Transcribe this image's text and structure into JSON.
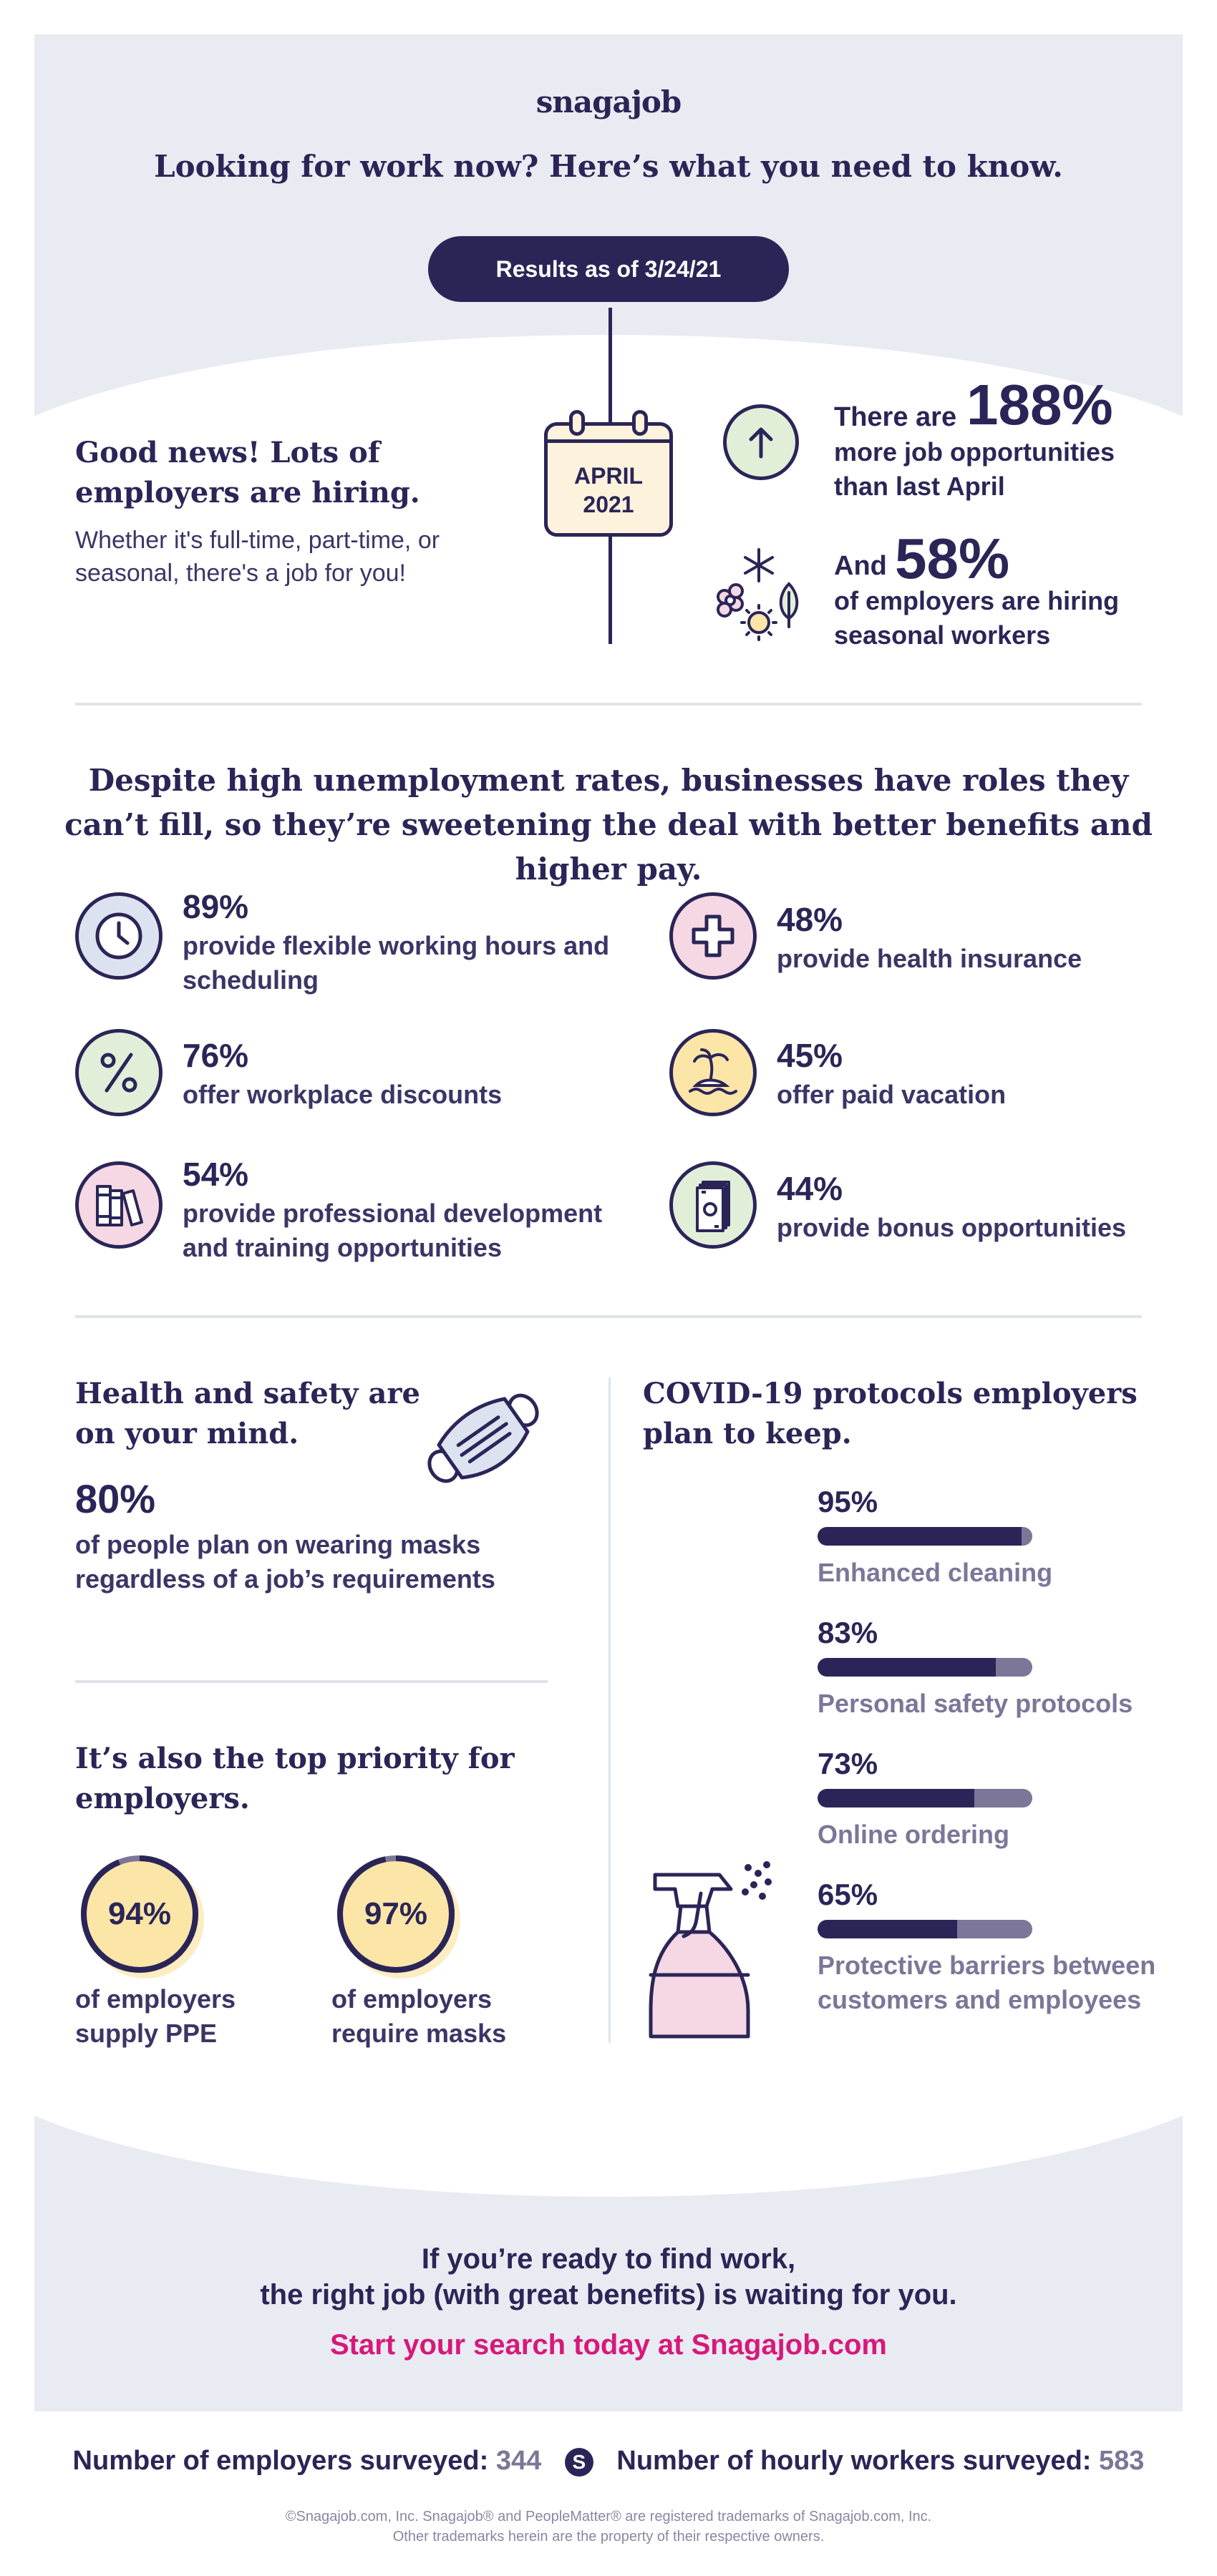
{
  "header": {
    "logo": "snagajob",
    "title": "Looking for work now? Here’s what you need to know.",
    "results_pill": "Results as of 3/24/21"
  },
  "intro": {
    "heading": "Good news! Lots of employers are hiring.",
    "body": "Whether it's full-time, part-time, or seasonal, there's a job for you!",
    "calendar_month": "APRIL",
    "calendar_year": "2021",
    "stat1": {
      "prefix": "There are",
      "value": "188%",
      "desc": "more job opportunities than last April",
      "icon": "arrow-up-icon"
    },
    "stat2": {
      "prefix": "And",
      "value": "58%",
      "desc": "of employers are hiring seasonal workers",
      "icon": "seasons-icon"
    }
  },
  "benefits": {
    "heading": "Despite high unemployment rates, businesses have roles they can’t fill, so they’re sweetening the deal with better benefits and higher pay.",
    "items": [
      {
        "value": "89%",
        "desc": "provide flexible working hours and scheduling",
        "icon": "clock-icon",
        "color": "#dde2f0"
      },
      {
        "value": "48%",
        "desc": "provide health insurance",
        "icon": "medical-cross-icon",
        "color": "#f6d7e4"
      },
      {
        "value": "76%",
        "desc": "offer workplace discounts",
        "icon": "percent-icon",
        "color": "#e1efd9"
      },
      {
        "value": "45%",
        "desc": "offer paid vacation",
        "icon": "island-icon",
        "color": "#fbe6a8"
      },
      {
        "value": "54%",
        "desc": "provide professional development and training opportunities",
        "icon": "books-icon",
        "color": "#f6d7e4"
      },
      {
        "value": "44%",
        "desc": "provide bonus opportunities",
        "icon": "cash-icon",
        "color": "#e1efd9"
      }
    ]
  },
  "health": {
    "heading": "Health and safety are on your mind.",
    "value": "80%",
    "desc": "of people plan on wearing masks regardless of a job’s requirements",
    "priority_heading": "It’s also the top priority for employers.",
    "rings": [
      {
        "value": "94%",
        "fraction": 0.94,
        "desc": "of employers supply PPE"
      },
      {
        "value": "97%",
        "fraction": 0.97,
        "desc": "of employers require masks"
      }
    ]
  },
  "covid": {
    "heading": "COVID-19 protocols employers plan to keep.",
    "bars": [
      {
        "value": "95%",
        "fraction": 0.95,
        "label": "Enhanced cleaning"
      },
      {
        "value": "83%",
        "fraction": 0.83,
        "label": "Personal safety protocols"
      },
      {
        "value": "73%",
        "fraction": 0.73,
        "label": "Online ordering"
      },
      {
        "value": "65%",
        "fraction": 0.65,
        "label": "Protective barriers between customers and employees"
      }
    ]
  },
  "footer": {
    "line1": "If you’re ready to find work,",
    "line2": "the right job (with great benefits) is waiting for you.",
    "cta": "Start your search today at Snagajob.com",
    "employers_label": "Number of employers surveyed:",
    "employers_count": "344",
    "workers_label": "Number of hourly workers surveyed:",
    "workers_count": "583",
    "legal1": "©Snagajob.com, Inc. Snagajob® and PeopleMatter® are registered trademarks of Snagajob.com, Inc.",
    "legal2": "Other trademarks herein are the property of their respective owners."
  },
  "colors": {
    "navy": "#2b2557",
    "muted": "#7c7698",
    "accent_pink": "#d6197a",
    "pale_yellow": "#fbe6a8"
  }
}
